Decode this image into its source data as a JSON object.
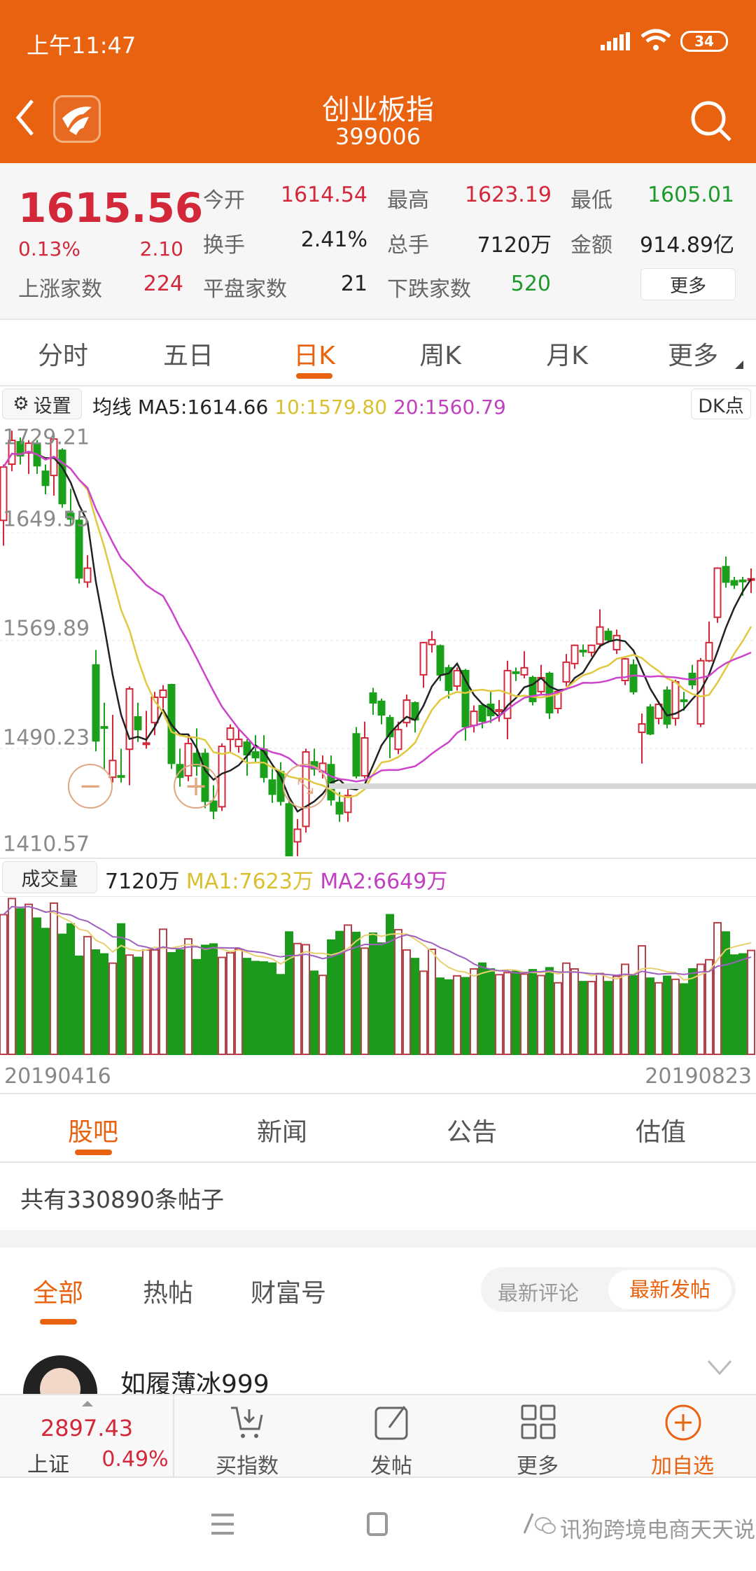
{
  "status": {
    "time": "上午11:47",
    "battery": "34"
  },
  "header": {
    "title": "创业板指",
    "code": "399006"
  },
  "quote": {
    "price": "1615.56",
    "change_pct": "0.13%",
    "change": "2.10",
    "open_label": "今开",
    "open": "1614.54",
    "high_label": "最高",
    "high": "1623.19",
    "low_label": "最低",
    "low": "1605.01",
    "turnover_label": "换手",
    "turnover": "2.41%",
    "volume_label": "总手",
    "volume": "7120万",
    "amount_label": "金额",
    "amount": "914.89亿",
    "up_label": "上涨家数",
    "up": "224",
    "flat_label": "平盘家数",
    "flat": "21",
    "down_label": "下跌家数",
    "down": "520",
    "more_label": "更多"
  },
  "period_tabs": [
    {
      "label": "分时"
    },
    {
      "label": "五日"
    },
    {
      "label": "日K",
      "active": true
    },
    {
      "label": "周K"
    },
    {
      "label": "月K"
    },
    {
      "label": "更多"
    }
  ],
  "ma_bar": {
    "settings_label": "设置",
    "ma_label": "均线",
    "ma5": "MA5:1614.66",
    "ma10": "10:1579.80",
    "ma20": "20:1560.79",
    "dk_label": "DK点"
  },
  "volume_bar": {
    "label": "成交量",
    "value": "7120万",
    "ma1": "MA1:7623万",
    "ma2": "MA2:6649万"
  },
  "colors": {
    "brand": "#E8620F",
    "up": "#d3283a",
    "down": "#1aa01a",
    "ma5": "#222222",
    "ma10": "#e0c840",
    "ma20": "#cc44cc"
  },
  "chart_data": {
    "type": "candlestick",
    "ylim": [
      1410.57,
      1729.21
    ],
    "y_ticks": [
      "1729.21",
      "1649.55",
      "1569.89",
      "1490.23",
      "1410.57"
    ],
    "x_start": "20190416",
    "x_end": "20190823",
    "ohlc_fields": [
      "open",
      "high",
      "low",
      "close"
    ],
    "ohlc": [
      [
        1658.7,
        1700,
        1640,
        1698.1
      ],
      [
        1700.2,
        1725,
        1695,
        1717.8
      ],
      [
        1716.8,
        1720,
        1700,
        1706.4
      ],
      [
        1708.5,
        1718,
        1693,
        1715.7
      ],
      [
        1715.7,
        1718,
        1693,
        1699.1
      ],
      [
        1695,
        1700,
        1678,
        1684.6
      ],
      [
        1691.9,
        1720,
        1677,
        1718.8
      ],
      [
        1710.5,
        1712,
        1668,
        1671.1
      ],
      [
        1663.9,
        1682,
        1655,
        1659.7
      ],
      [
        1658.7,
        1662,
        1612,
        1616.2
      ],
      [
        1613.1,
        1633,
        1609,
        1623.4
      ],
      [
        1551.9,
        1563,
        1488,
        1495.8
      ],
      [
        1506.2,
        1524,
        1475,
        1505.2
      ],
      [
        1468.9,
        1515,
        1465,
        1481.3
      ],
      [
        1470,
        1490,
        1465,
        1469.5
      ],
      [
        1489.6,
        1536,
        1463,
        1534.2
      ],
      [
        1513.5,
        1524,
        1495,
        1504.1
      ],
      [
        1493.3,
        1518,
        1490,
        1494.2
      ],
      [
        1509.3,
        1532,
        1500,
        1528
      ],
      [
        1528,
        1537,
        1520,
        1533.2
      ],
      [
        1537.3,
        1538,
        1475,
        1479.2
      ],
      [
        1478.2,
        1490,
        1462,
        1468.9
      ],
      [
        1470,
        1500,
        1466,
        1493.8
      ],
      [
        1486.5,
        1505,
        1470,
        1477.2
      ],
      [
        1486.5,
        1490,
        1446,
        1451.2
      ],
      [
        1451.2,
        1463,
        1438,
        1444
      ],
      [
        1447.1,
        1494,
        1444,
        1491.7
      ],
      [
        1496.9,
        1508,
        1487,
        1505.2
      ],
      [
        1491.7,
        1505,
        1487,
        1496.9
      ],
      [
        1494.8,
        1497,
        1470,
        1485.5
      ],
      [
        1487.6,
        1500,
        1480,
        1483.4
      ],
      [
        1489.6,
        1500,
        1465,
        1468.9
      ],
      [
        1466.8,
        1475,
        1450,
        1456.4
      ],
      [
        1473,
        1480,
        1448,
        1451.2
      ],
      [
        1449.2,
        1452,
        1410.57,
        1411
      ],
      [
        1421.2,
        1438,
        1410.6,
        1430.5
      ],
      [
        1432.6,
        1490,
        1428,
        1487.6
      ],
      [
        1480.3,
        1490,
        1470,
        1475.1
      ],
      [
        1473,
        1485,
        1468,
        1479.2
      ],
      [
        1478.2,
        1485,
        1448,
        1452.3
      ],
      [
        1450.2,
        1458,
        1436,
        1441.9
      ],
      [
        1443,
        1460,
        1436,
        1455.4
      ],
      [
        1501,
        1506,
        1468,
        1470
      ],
      [
        1470,
        1510,
        1468,
        1498
      ],
      [
        1531.1,
        1535,
        1515,
        1523.9
      ],
      [
        1525,
        1527,
        1508,
        1515
      ],
      [
        1512.9,
        1515,
        1483,
        1499
      ],
      [
        1489.6,
        1510,
        1486,
        1504.1
      ],
      [
        1509.3,
        1530,
        1506,
        1525.9
      ],
      [
        1523.9,
        1525,
        1502,
        1511.4
      ],
      [
        1544.6,
        1569,
        1535,
        1568.4
      ],
      [
        1567,
        1577,
        1561,
        1570.5
      ],
      [
        1566,
        1567,
        1540,
        1544.6
      ],
      [
        1549.8,
        1552,
        1527,
        1533.2
      ],
      [
        1536.3,
        1550,
        1533,
        1547.7
      ],
      [
        1547.7,
        1549,
        1496,
        1506.2
      ],
      [
        1507.2,
        1522,
        1502,
        1517.6
      ],
      [
        1521.8,
        1523,
        1505,
        1510.4
      ],
      [
        1522.8,
        1532,
        1509,
        1514.5
      ],
      [
        1517.6,
        1526,
        1510,
        1518.7
      ],
      [
        1512.4,
        1555,
        1497,
        1547.7
      ],
      [
        1546.7,
        1550,
        1540,
        1546.1
      ],
      [
        1544.6,
        1562,
        1542,
        1549.8
      ],
      [
        1542.5,
        1544,
        1522,
        1524.9
      ],
      [
        1532.2,
        1552,
        1530,
        1542.5
      ],
      [
        1545.6,
        1547,
        1512,
        1516.6
      ],
      [
        1519.7,
        1534,
        1516,
        1532.2
      ],
      [
        1539.4,
        1560,
        1536,
        1553.9
      ],
      [
        1552.9,
        1567,
        1549,
        1566.4
      ],
      [
        1562.6,
        1567,
        1558,
        1562.2
      ],
      [
        1561.2,
        1567,
        1558,
        1566.4
      ],
      [
        1567.4,
        1593,
        1564,
        1579.9
      ],
      [
        1576.7,
        1579,
        1568,
        1570.5
      ],
      [
        1563.2,
        1578,
        1560,
        1573.6
      ],
      [
        1540.4,
        1557,
        1537,
        1556.4
      ],
      [
        1551.9,
        1556,
        1530,
        1532.2
      ],
      [
        1502.1,
        1516,
        1479,
        1508.3
      ],
      [
        1520.7,
        1523,
        1500,
        1501
      ],
      [
        1512.4,
        1525,
        1508,
        1522.8
      ],
      [
        1533.2,
        1536,
        1505,
        1508.3
      ],
      [
        1512.4,
        1541,
        1507,
        1539.4
      ],
      [
        1526,
        1532,
        1518,
        1525
      ],
      [
        1545.6,
        1552,
        1534,
        1537.3
      ],
      [
        1508.3,
        1557,
        1506,
        1555
      ],
      [
        1555,
        1584,
        1554,
        1568.4
      ],
      [
        1587.1,
        1624,
        1583,
        1623.4
      ],
      [
        1624.5,
        1632,
        1609,
        1613.1
      ],
      [
        1614.1,
        1617,
        1608,
        1611
      ],
      [
        1614.5,
        1617,
        1603,
        1614.1
      ],
      [
        1614.54,
        1623.19,
        1605.01,
        1615.56
      ]
    ],
    "ma_periods": [
      5,
      10,
      20
    ],
    "volume_unit": "万",
    "volume_max": 10700,
    "volume": [
      9571,
      10679,
      9967,
      10283,
      9334,
      8622,
      10362,
      8226,
      8938,
      6724,
      8068,
      7151,
      6882,
      6249,
      8938,
      6803,
      6644,
      7151,
      7151,
      8574,
      6961,
      7151,
      7910,
      6486,
      7467,
      7562,
      6644,
      6961,
      7198,
      6565,
      6360,
      6328,
      6249,
      5458,
      8385,
      7594,
      7515,
      5695,
      5410,
      7831,
      8416,
      8859,
      8353,
      7277,
      8306,
      7625,
      9571,
      8543,
      7151,
      6565,
      5695,
      7198,
      5221,
      5094,
      5379,
      5252,
      5853,
      6249,
      5853,
      5458,
      5600,
      5700,
      5500,
      5800,
      5400,
      5933,
      4904,
      6249,
      5853,
      4983,
      4983,
      5537,
      4983,
      5347,
      6170,
      5379,
      7435,
      5221,
      4904,
      5347,
      5142,
      4825,
      5853,
      6170,
      6486,
      9017,
      8385,
      6803,
      6882,
      7120
    ]
  },
  "sub_tabs": [
    {
      "label": "股吧",
      "active": true
    },
    {
      "label": "新闻"
    },
    {
      "label": "公告"
    },
    {
      "label": "估值"
    }
  ],
  "post_count": "共有330890条帖子",
  "filter_tabs": [
    {
      "label": "全部",
      "active": true
    },
    {
      "label": "热帖"
    },
    {
      "label": "财富号"
    }
  ],
  "sort": {
    "latest_comment": "最新评论",
    "latest_post": "最新发帖"
  },
  "post": {
    "username": "如履薄冰999"
  },
  "bottom_bar": {
    "index_value": "2897.43",
    "index_name": "上证",
    "index_pct": "0.49%",
    "buy": "买指数",
    "post": "发帖",
    "more": "更多",
    "add": "加自选"
  },
  "watermark": "讯狗跨境电商天天说"
}
